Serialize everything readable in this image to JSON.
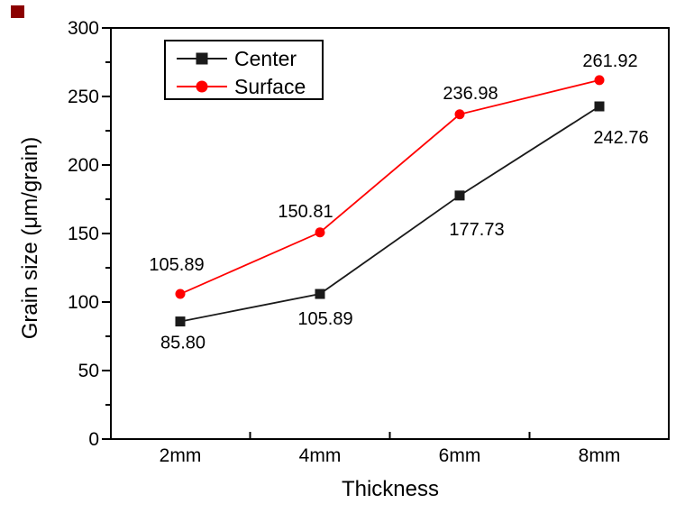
{
  "chart_data": {
    "type": "line",
    "title": "",
    "xlabel": "Thickness",
    "ylabel": "Grain size (μm/grain)",
    "categories": [
      "2mm",
      "4mm",
      "6mm",
      "8mm"
    ],
    "series": [
      {
        "name": "Center",
        "color": "#1a1a1a",
        "marker": "square",
        "values": [
          85.8,
          105.89,
          177.73,
          242.76
        ],
        "labels": [
          "85.80",
          "105.89",
          "177.73",
          "242.76"
        ],
        "label_offsets": [
          [
            3,
            30
          ],
          [
            6,
            34
          ],
          [
            19,
            44
          ],
          [
            24,
            41
          ]
        ]
      },
      {
        "name": "Surface",
        "color": "#ff0000",
        "marker": "circle",
        "values": [
          105.89,
          150.81,
          236.98,
          261.92
        ],
        "labels": [
          "105.89",
          "150.81",
          "236.98",
          "261.92"
        ],
        "label_offsets": [
          [
            -4,
            -26
          ],
          [
            -16,
            -17
          ],
          [
            12,
            -17
          ],
          [
            12,
            -15
          ]
        ]
      }
    ],
    "ylim": [
      0,
      300
    ],
    "y_major_step": 50,
    "y_minor_step": 25,
    "y_ticks": [
      "0",
      "50",
      "100",
      "150",
      "200",
      "250",
      "300"
    ],
    "grid": false,
    "legend_position": "top-left-inside",
    "frame_color": "#000000",
    "background_color": "#ffffff"
  },
  "decorations": {
    "corner_square_color": "#8b0000"
  }
}
